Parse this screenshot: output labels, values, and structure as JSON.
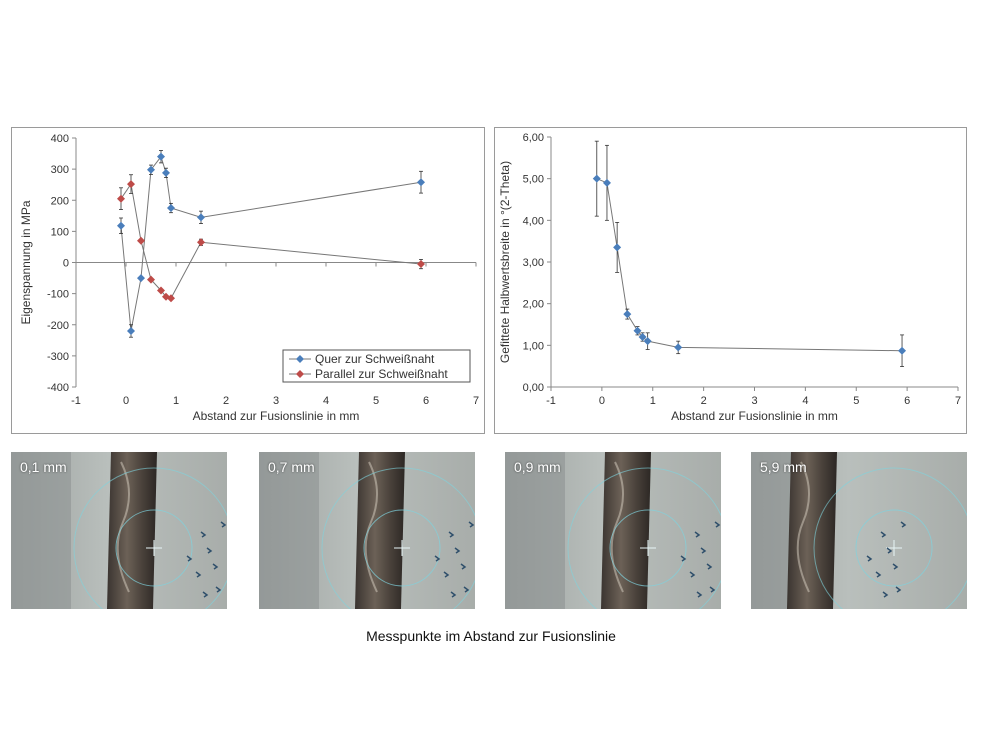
{
  "chart_data": [
    {
      "type": "scatter",
      "xlabel": "Abstand zur Fusionslinie in mm",
      "ylabel": "Eigenspannung in MPa",
      "xlim": [
        -1,
        7
      ],
      "ylim": [
        -400,
        400
      ],
      "xticks": [
        "-1",
        "0",
        "1",
        "2",
        "3",
        "4",
        "5",
        "6",
        "7"
      ],
      "yticks": [
        "400",
        "300",
        "200",
        "100",
        "0",
        "-100",
        "-200",
        "-300",
        "-400"
      ],
      "legend": "bottom-right",
      "series": [
        {
          "name": "Quer zur Schweißnaht",
          "color": "#4a7ebb",
          "x": [
            -0.1,
            0.1,
            0.3,
            0.5,
            0.7,
            0.8,
            0.9,
            1.5,
            5.9
          ],
          "y": [
            118,
            -220,
            -50,
            298,
            340,
            288,
            175,
            145,
            258
          ],
          "err": [
            25,
            20,
            0,
            15,
            20,
            15,
            15,
            20,
            35
          ]
        },
        {
          "name": "Parallel zur Schweißnaht",
          "color": "#be4b48",
          "x": [
            -0.1,
            0.1,
            0.3,
            0.5,
            0.7,
            0.8,
            0.9,
            1.5,
            5.9
          ],
          "y": [
            205,
            252,
            70,
            -55,
            -90,
            -110,
            -115,
            65,
            -5
          ],
          "err": [
            35,
            30,
            0,
            0,
            0,
            0,
            0,
            10,
            15
          ]
        }
      ]
    },
    {
      "type": "scatter",
      "xlabel": "Abstand zur Fusionslinie in mm",
      "ylabel": "Gefittete Halbwertsbreite in °(2-Theta)",
      "xlim": [
        -1,
        7
      ],
      "ylim": [
        0,
        6
      ],
      "xticks": [
        "-1",
        "0",
        "1",
        "2",
        "3",
        "4",
        "5",
        "6",
        "7"
      ],
      "yticks": [
        "6,00",
        "5,00",
        "4,00",
        "3,00",
        "2,00",
        "1,00",
        "0,00"
      ],
      "series": [
        {
          "name": "",
          "color": "#4a7ebb",
          "x": [
            -0.1,
            0.1,
            0.3,
            0.5,
            0.7,
            0.8,
            0.9,
            1.5,
            5.9
          ],
          "y": [
            5.0,
            4.9,
            3.35,
            1.75,
            1.35,
            1.2,
            1.1,
            0.95,
            0.87
          ],
          "err": [
            0.9,
            0.9,
            0.6,
            0.12,
            0.1,
            0.1,
            0.2,
            0.15,
            0.38
          ]
        }
      ]
    }
  ],
  "photos": [
    {
      "label": "0,1 mm",
      "scene": "wire-left"
    },
    {
      "label": "0,7 mm",
      "scene": "wire-close"
    },
    {
      "label": "0,9 mm",
      "scene": "wire-close"
    },
    {
      "label": "5,9 mm",
      "scene": "far"
    }
  ],
  "caption": "Messpunkte im Abstand zur Fusionslinie"
}
